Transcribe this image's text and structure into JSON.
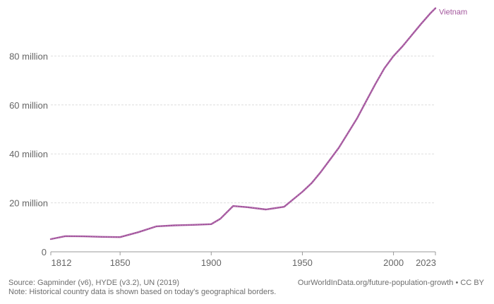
{
  "chart_data": {
    "type": "line",
    "title": "",
    "xlabel": "",
    "ylabel": "",
    "xlim": [
      1812,
      2023
    ],
    "ylim": [
      0,
      100
    ],
    "y_unit": "million",
    "grid": true,
    "x_ticks": [
      1812,
      1850,
      1900,
      1950,
      2000,
      2023
    ],
    "y_ticks": [
      {
        "value": 0,
        "label": "0"
      },
      {
        "value": 20,
        "label": "20 million"
      },
      {
        "value": 40,
        "label": "40 million"
      },
      {
        "value": 60,
        "label": "60 million"
      },
      {
        "value": 80,
        "label": "80 million"
      }
    ],
    "series": [
      {
        "name": "Vietnam",
        "color": "#a2559c",
        "x": [
          1812,
          1820,
          1830,
          1840,
          1850,
          1860,
          1870,
          1880,
          1890,
          1900,
          1905,
          1912,
          1920,
          1930,
          1940,
          1950,
          1955,
          1960,
          1965,
          1970,
          1975,
          1980,
          1985,
          1990,
          1995,
          2000,
          2005,
          2010,
          2015,
          2020,
          2023
        ],
        "y": [
          5.2,
          6.4,
          6.3,
          6.1,
          6.0,
          8.0,
          10.4,
          10.8,
          11.0,
          11.3,
          13.5,
          18.7,
          18.2,
          17.3,
          18.4,
          24.5,
          28.0,
          32.5,
          37.5,
          42.5,
          48.5,
          54.5,
          61.5,
          68.5,
          75.0,
          80.0,
          84.0,
          88.5,
          93.0,
          97.3,
          99.5
        ]
      }
    ]
  },
  "footer": {
    "source": "Source: Gapminder (v6), HYDE (v3.2), UN (2019)",
    "note": "Note: Historical country data is shown based on today's geographical borders.",
    "credit": "OurWorldInData.org/future-population-growth • CC BY"
  }
}
